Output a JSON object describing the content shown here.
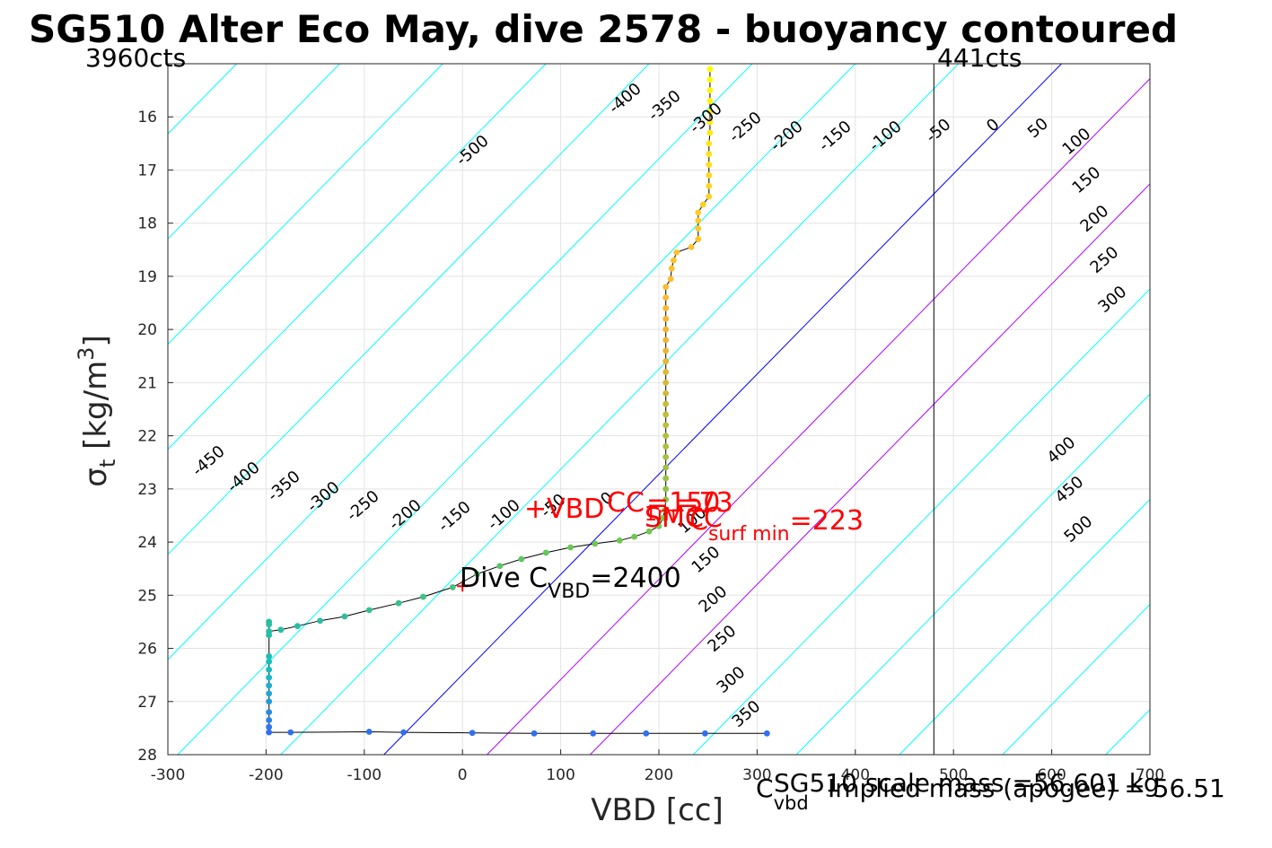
{
  "chart_data": {
    "type": "scatter",
    "title": "SG510 Alter Eco May, dive 2578 - buoyancy contoured",
    "xlabel": "VBD [cc]",
    "ylabel_main": "σ",
    "ylabel_sub": "t",
    "ylabel_unit": " [kg/m",
    "ylabel_sup": "3",
    "ylabel_close": "]",
    "xlim": [
      -300,
      700
    ],
    "ylim": [
      15,
      28
    ],
    "y_reversed": true,
    "grid": true,
    "x_ticks": [
      "-300",
      "-200",
      "-100",
      "0",
      "100",
      "200",
      "300",
      "400",
      "500",
      "600",
      "700"
    ],
    "y_ticks": [
      "16",
      "17",
      "18",
      "19",
      "20",
      "21",
      "22",
      "23",
      "24",
      "25",
      "26",
      "27",
      "28"
    ],
    "y_tick_values": [
      16,
      17,
      18,
      19,
      20,
      21,
      22,
      23,
      24,
      25,
      26,
      27,
      28
    ],
    "x_tick_values": [
      -300,
      -200,
      -100,
      0,
      100,
      200,
      300,
      400,
      500,
      600,
      700
    ],
    "counts_left": "3960cts",
    "counts_right": "441cts",
    "vertical_line_x": 480,
    "buoyancy_contours": {
      "description_levels": [
        -500,
        -450,
        -400,
        -350,
        -300,
        -250,
        -200,
        -150,
        -100,
        -50,
        0,
        50,
        100,
        150,
        200,
        250,
        300,
        350,
        400,
        450,
        500
      ],
      "zero_x_at_sigma": [
        [
          -80,
          28
        ],
        [
          610,
          15
        ]
      ],
      "colors": {
        "negative": "#00ffff",
        "zero": "#0000ff",
        "mid_positive": "#b000ff",
        "positive": "#00ffff"
      },
      "labels_upper": [
        {
          "text": "-500"
        },
        {
          "text": "-400"
        },
        {
          "text": "-350"
        },
        {
          "text": "-300"
        },
        {
          "text": "-250"
        },
        {
          "text": "-200"
        },
        {
          "text": "-150"
        },
        {
          "text": "-100"
        },
        {
          "text": "-50"
        },
        {
          "text": "0"
        },
        {
          "text": "50"
        },
        {
          "text": "100"
        },
        {
          "text": "150"
        },
        {
          "text": "200"
        },
        {
          "text": "250"
        },
        {
          "text": "300"
        }
      ],
      "labels_lower": [
        {
          "text": "-450"
        },
        {
          "text": "-400"
        },
        {
          "text": "-350"
        },
        {
          "text": "-300"
        },
        {
          "text": "-250"
        },
        {
          "text": "-200"
        },
        {
          "text": "-150"
        },
        {
          "text": "-100"
        },
        {
          "text": "-50"
        },
        {
          "text": "0"
        },
        {
          "text": "100"
        },
        {
          "text": "150"
        },
        {
          "text": "200"
        },
        {
          "text": "250"
        },
        {
          "text": "300"
        },
        {
          "text": "350"
        },
        {
          "text": "400"
        },
        {
          "text": "450"
        },
        {
          "text": "500"
        }
      ]
    },
    "series": [
      {
        "kind": "profile",
        "points": [
          [
            252,
            15.1
          ],
          [
            252,
            15.3
          ],
          [
            252,
            15.5
          ],
          [
            252,
            15.7
          ],
          [
            252,
            15.9
          ],
          [
            252,
            16.1
          ],
          [
            252,
            16.3
          ],
          [
            251,
            16.5
          ],
          [
            251,
            16.7
          ],
          [
            251,
            16.9
          ],
          [
            251,
            17.1
          ],
          [
            251,
            17.3
          ],
          [
            251,
            17.5
          ],
          [
            245,
            17.65
          ],
          [
            240,
            17.8
          ],
          [
            240,
            17.95
          ],
          [
            240,
            18.1
          ],
          [
            240,
            18.3
          ],
          [
            233,
            18.45
          ],
          [
            218,
            18.55
          ],
          [
            215,
            18.7
          ],
          [
            213,
            18.85
          ],
          [
            212,
            19.05
          ],
          [
            207,
            19.2
          ],
          [
            207,
            19.4
          ],
          [
            207,
            19.6
          ],
          [
            207,
            19.8
          ],
          [
            207,
            20.0
          ],
          [
            207,
            20.2
          ],
          [
            207,
            20.4
          ],
          [
            207,
            20.6
          ],
          [
            207,
            20.8
          ],
          [
            207,
            21.0
          ],
          [
            207,
            21.2
          ],
          [
            207,
            21.4
          ],
          [
            207,
            21.6
          ],
          [
            207,
            21.8
          ],
          [
            207,
            22.0
          ],
          [
            207,
            22.2
          ],
          [
            207,
            22.4
          ],
          [
            207,
            22.6
          ],
          [
            207,
            22.8
          ],
          [
            207,
            23.0
          ],
          [
            207,
            23.2
          ],
          [
            206,
            23.4
          ],
          [
            204,
            23.55
          ],
          [
            200,
            23.7
          ],
          [
            190,
            23.8
          ],
          [
            175,
            23.9
          ],
          [
            160,
            23.97
          ],
          [
            135,
            24.03
          ],
          [
            110,
            24.1
          ],
          [
            85,
            24.2
          ],
          [
            60,
            24.32
          ],
          [
            38,
            24.45
          ],
          [
            15,
            24.6
          ],
          [
            -10,
            24.85
          ],
          [
            -40,
            25.03
          ],
          [
            -65,
            25.15
          ],
          [
            -95,
            25.28
          ],
          [
            -120,
            25.4
          ],
          [
            -145,
            25.48
          ],
          [
            -168,
            25.58
          ],
          [
            -185,
            25.65
          ],
          [
            -197,
            25.68
          ],
          [
            -197,
            25.55
          ],
          [
            -197,
            25.5
          ],
          [
            -197,
            25.75
          ],
          [
            -197,
            26.15
          ],
          [
            -197,
            26.25
          ],
          [
            -197,
            26.4
          ],
          [
            -197,
            26.55
          ],
          [
            -197,
            26.7
          ],
          [
            -197,
            26.85
          ],
          [
            -197,
            27.0
          ],
          [
            -197,
            27.2
          ],
          [
            -197,
            27.35
          ],
          [
            -197,
            27.48
          ],
          [
            -197,
            27.58
          ],
          [
            -175,
            27.58
          ],
          [
            -95,
            27.57
          ],
          [
            -60,
            27.58
          ],
          [
            10,
            27.59
          ],
          [
            73,
            27.6
          ],
          [
            133,
            27.6
          ],
          [
            187,
            27.6
          ],
          [
            247,
            27.6
          ],
          [
            310,
            27.6
          ]
        ]
      }
    ],
    "markers": [
      {
        "label": "+VBD",
        "x": 0,
        "y": 24.83
      }
    ],
    "annotations": {
      "vbd_tag": "+VBD",
      "cc_label": "CC",
      "cc_sub": "1m",
      "cc_value": "=73",
      "smcc_label": "SMCC",
      "smcc_value": "=150",
      "csurf_label": "C",
      "csurf_sub": "surf min",
      "csurf_value": "=223",
      "dive_label": "Dive C",
      "dive_sub": "VBD",
      "dive_value": "=2400",
      "overlap_text": "-50",
      "overlap_text2": "0"
    },
    "footer": {
      "cvbd_label": "C",
      "cvbd_sub": "vbd",
      "scale_mass": "SG510 scale mass =56.601 kg",
      "implied_mass": "Implied mass (apogee) = 56.51"
    }
  }
}
